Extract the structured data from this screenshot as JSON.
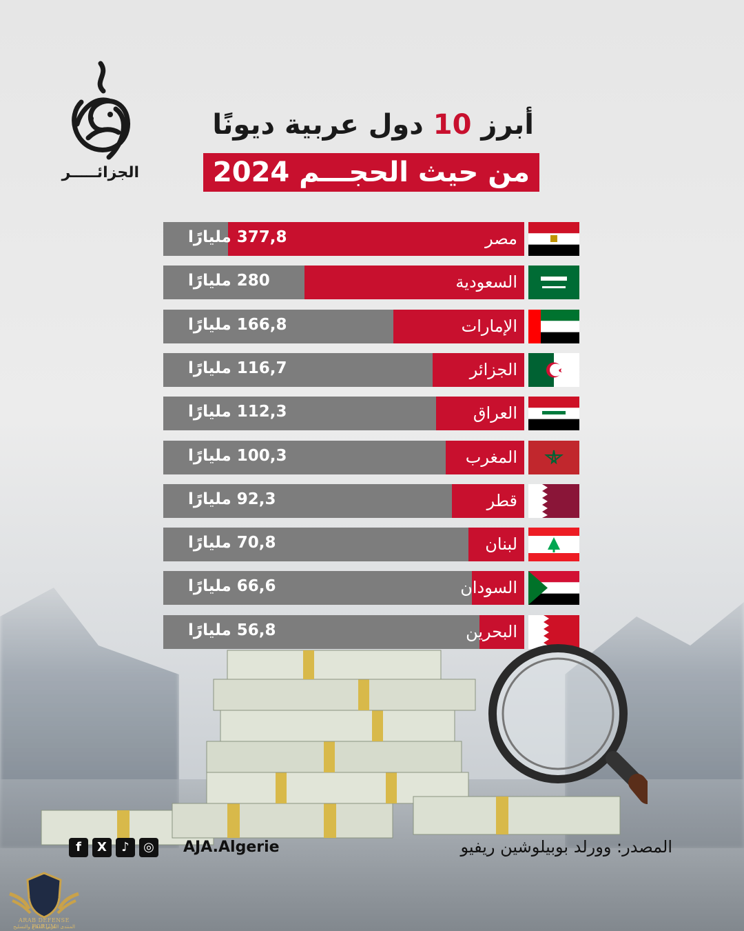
{
  "logo": {
    "brand_name": "الجزيرة",
    "label": "الجزائـــــر"
  },
  "title": {
    "line1_pre": "أبرز ",
    "line1_num": "10",
    "line1_post": " دول عربية ديونًا",
    "line2": "من حيث الحجـــم 2024"
  },
  "colors": {
    "accent": "#c8102e",
    "bar_bg": "#7d7d7d"
  },
  "chart_data": {
    "type": "bar",
    "orientation": "horizontal",
    "title": "أبرز 10 دول عربية ديونًا من حيث الحجـــم 2024",
    "categories": [
      "مصر",
      "السعودية",
      "الإمارات",
      "الجزائر",
      "العراق",
      "المغرب",
      "قطر",
      "لبنان",
      "السودان",
      "البحرين"
    ],
    "values": [
      377.8,
      280,
      166.8,
      116.7,
      112.3,
      100.3,
      92.3,
      70.8,
      66.6,
      56.8
    ],
    "value_labels": [
      "377,8 مليارًا",
      "280 مليارًا",
      "166,8 مليارًا",
      "116,7 مليارًا",
      "112,3 مليارًا",
      "100,3 مليارًا",
      "92,3 مليارًا",
      "70,8 مليارًا",
      "66,6 مليارًا",
      "56,8 مليارًا"
    ],
    "flags": [
      "egypt-flag-icon",
      "saudi-flag-icon",
      "uae-flag-icon",
      "algeria-flag-icon",
      "iraq-flag-icon",
      "morocco-flag-icon",
      "qatar-flag-icon",
      "lebanon-flag-icon",
      "sudan-flag-icon",
      "bahrain-flag-icon"
    ],
    "xlim": [
      0,
      460
    ]
  },
  "footer": {
    "source": "المصدر: وورلد بوبيلوشين ريفيو",
    "handle": "AJA.Algerie",
    "social": [
      "instagram-icon",
      "tiktok-icon",
      "x-icon",
      "facebook-icon"
    ]
  },
  "watermark": {
    "line1": "ARAB DEFENSE FORUM",
    "line2": "المنتدى العربي للدفاع والتسليح"
  }
}
